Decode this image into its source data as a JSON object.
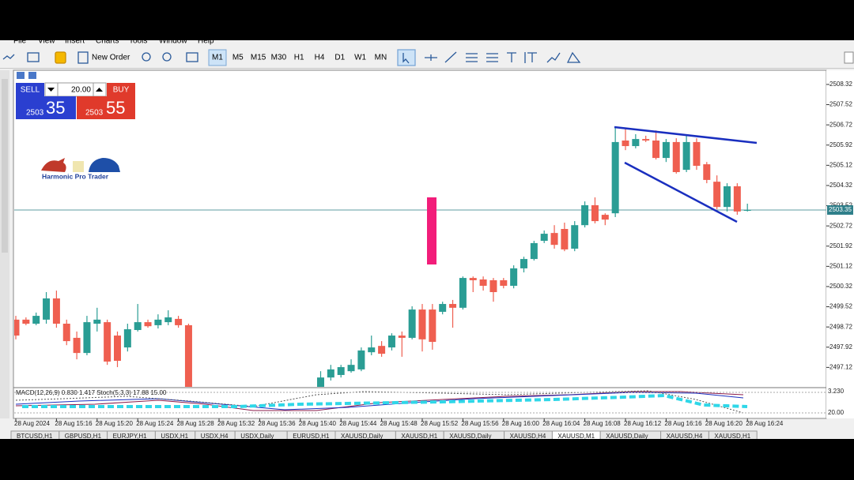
{
  "menu": [
    "File",
    "View",
    "Insert",
    "Charts",
    "Tools",
    "Window",
    "Help"
  ],
  "toolbar": {
    "new_order": "New Order",
    "timeframes": [
      "M1",
      "M5",
      "M15",
      "M30",
      "H1",
      "H4",
      "D1",
      "W1",
      "MN"
    ]
  },
  "one_click": {
    "sell": "SELL",
    "buy": "BUY",
    "volume": "20.00",
    "bid_big": "2503",
    "bid_small": "35",
    "ask_big": "2503",
    "ask_small": "55"
  },
  "logo": "Harmonic Pro Trader",
  "chart_data": {
    "type": "candlestick",
    "up_color": "#2a9d94",
    "down_color": "#ef5f50",
    "ylim": [
      2496.35,
      2508.85
    ],
    "yticks": [
      2508.32,
      2507.52,
      2506.72,
      2505.92,
      2505.12,
      2504.32,
      2503.52,
      2502.72,
      2501.92,
      2501.12,
      2500.32,
      2499.52,
      2498.72,
      2497.92,
      2497.12
    ],
    "current_price": 2503.35,
    "categories": [
      "28 Aug 2024",
      null,
      null,
      null,
      "28 Aug 15:16",
      null,
      null,
      null,
      "28 Aug 15:20",
      null,
      null,
      null,
      "28 Aug 15:24",
      null,
      null,
      null,
      "28 Aug 15:28",
      null,
      null,
      null,
      "28 Aug 15:32",
      null,
      null,
      null,
      "28 Aug 15:36",
      null,
      null,
      null,
      "28 Aug 15:40",
      null,
      null,
      null,
      "28 Aug 15:44",
      null,
      null,
      null,
      "28 Aug 15:48",
      null,
      null,
      null,
      "28 Aug 15:52",
      null,
      null,
      null,
      "28 Aug 15:56",
      null,
      null,
      null,
      "28 Aug 16:00",
      null,
      null,
      null,
      "28 Aug 16:04",
      null,
      null,
      null,
      "28 Aug 16:08",
      null,
      null,
      null,
      "28 Aug 16:12",
      null,
      null,
      null,
      "28 Aug 16:16",
      null,
      null,
      null,
      "28 Aug 16:20",
      null,
      null,
      null,
      "28 Aug 16:24"
    ],
    "ohlc": [
      [
        2499.01,
        2499.16,
        2498.23,
        2498.38
      ],
      [
        2499.01,
        2499.1,
        2498.79,
        2498.85
      ],
      [
        2498.85,
        2499.29,
        2498.79,
        2499.16
      ],
      [
        2499.01,
        2500.1,
        2498.85,
        2499.85
      ],
      [
        2499.85,
        2500.16,
        2498.69,
        2498.85
      ],
      [
        2498.85,
        2499.01,
        2498.0,
        2498.16
      ],
      [
        2498.29,
        2498.54,
        2497.44,
        2497.69
      ],
      [
        2497.69,
        2499.16,
        2497.6,
        2498.91
      ],
      [
        2498.85,
        2499.48,
        2498.54,
        2499.01
      ],
      [
        2498.91,
        2499.01,
        2497.22,
        2497.35
      ],
      [
        2498.38,
        2498.54,
        2497.13,
        2497.38
      ],
      [
        2497.91,
        2498.85,
        2497.75,
        2498.63
      ],
      [
        2498.6,
        2499.63,
        2498.54,
        2498.91
      ],
      [
        2498.91,
        2499.01,
        2498.69,
        2498.75
      ],
      [
        2498.79,
        2499.22,
        2498.66,
        2499.01
      ],
      [
        2498.91,
        2499.38,
        2498.79,
        2499.1
      ],
      [
        2499.04,
        2499.16,
        2498.69,
        2498.79
      ],
      [
        2498.79,
        2498.85,
        2495.6,
        2495.8
      ],
      null,
      null,
      null,
      null,
      null,
      null,
      null,
      null,
      null,
      null,
      null,
      null,
      [
        2496.2,
        2496.97,
        2496.1,
        2496.72
      ],
      [
        2496.72,
        2497.22,
        2496.6,
        2497.04
      ],
      [
        2496.82,
        2497.22,
        2496.72,
        2497.13
      ],
      [
        2496.97,
        2497.44,
        2496.91,
        2497.22
      ],
      [
        2497.04,
        2497.91,
        2496.97,
        2497.79
      ],
      [
        2497.72,
        2498.38,
        2497.6,
        2497.91
      ],
      [
        2497.97,
        2498.16,
        2497.54,
        2497.66
      ],
      [
        2497.91,
        2498.47,
        2497.79,
        2498.38
      ],
      [
        2498.38,
        2498.54,
        2497.54,
        2498.29
      ],
      [
        2498.29,
        2499.54,
        2498.23,
        2499.41
      ],
      [
        2499.41,
        2499.63,
        2497.75,
        2498.23
      ],
      [
        2499.41,
        2499.63,
        2497.82,
        2498.13
      ],
      [
        2499.32,
        2499.72,
        2499.22,
        2499.63
      ],
      [
        2499.63,
        2499.79,
        2498.69,
        2499.48
      ],
      [
        2499.48,
        2500.72,
        2499.41,
        2500.66
      ],
      [
        2500.66,
        2500.72,
        2500.1,
        2500.57
      ],
      [
        2500.6,
        2500.72,
        2500.16,
        2500.35
      ],
      [
        2500.57,
        2500.66,
        2499.72,
        2500.1
      ],
      [
        2500.57,
        2500.66,
        2500.25,
        2500.35
      ],
      [
        2500.35,
        2501.16,
        2500.25,
        2501.04
      ],
      [
        2501.04,
        2501.5,
        2500.88,
        2501.41
      ],
      [
        2501.41,
        2502.13,
        2501.35,
        2502.04
      ],
      [
        2502.13,
        2502.54,
        2502.04,
        2502.41
      ],
      [
        2502.44,
        2502.75,
        2501.82,
        2501.97
      ],
      [
        2502.6,
        2502.85,
        2501.72,
        2501.79
      ],
      [
        2501.82,
        2502.91,
        2501.72,
        2502.75
      ],
      [
        2502.75,
        2503.69,
        2502.66,
        2503.54
      ],
      [
        2503.54,
        2503.85,
        2502.82,
        2502.91
      ],
      [
        2503.16,
        2503.22,
        2502.75,
        2502.97
      ],
      [
        2503.22,
        2506.66,
        2503.07,
        2506.04
      ],
      [
        2506.1,
        2506.6,
        2505.72,
        2505.88
      ],
      [
        2505.88,
        2506.35,
        2505.79,
        2506.16
      ],
      [
        2506.16,
        2506.29,
        2506.04,
        2506.1
      ],
      [
        2506.1,
        2506.5,
        2505.35,
        2505.41
      ],
      [
        2505.41,
        2506.16,
        2505.25,
        2506.04
      ],
      [
        2506.04,
        2506.19,
        2504.79,
        2504.85
      ],
      [
        2504.94,
        2506.29,
        2504.85,
        2506.04
      ],
      [
        2506.04,
        2506.19,
        2504.94,
        2505.1
      ],
      [
        2505.16,
        2505.25,
        2504.41,
        2504.54
      ],
      [
        2504.47,
        2504.72,
        2503.38,
        2503.47
      ],
      [
        2503.47,
        2504.41,
        2503.29,
        2504.29
      ],
      [
        2504.29,
        2504.41,
        2503.16,
        2503.29
      ],
      [
        2503.32,
        2503.6,
        2503.29,
        2503.35
      ]
    ],
    "indicator_label": "MACD(12,26,9) 0.830 1.417 Stoch(5,3,3) 17.88 15.00",
    "indicator_scale": [
      "3.230",
      "20.00"
    ]
  },
  "tabs": [
    "BTCUSD,H1",
    "GBPUSD,H1",
    "EURJPY,H1",
    "USDX,H1",
    "USDX,H4",
    "USDX,Daily",
    "EURUSD,H1",
    "XAUUSD,Daily",
    "XAUUSD,H1",
    "XAUUSD,Daily",
    "XAUUSD,H4",
    "XAUUSD,M1",
    "XAUUSD,Daily",
    "XAUUSD,H4",
    "XAUUSD,H1"
  ],
  "active_tab": "XAUUSD,M1"
}
